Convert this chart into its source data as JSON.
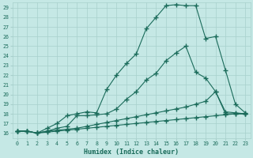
{
  "xlabel": "Humidex (Indice chaleur)",
  "background_color": "#c5e8e5",
  "grid_color": "#a8d0cc",
  "line_color": "#1a6b5a",
  "xlim": [
    -0.5,
    23.5
  ],
  "ylim": [
    15.5,
    29.5
  ],
  "yticks": [
    16,
    17,
    18,
    19,
    20,
    21,
    22,
    23,
    24,
    25,
    26,
    27,
    28,
    29
  ],
  "xticks": [
    0,
    1,
    2,
    3,
    4,
    5,
    6,
    7,
    8,
    9,
    10,
    11,
    12,
    13,
    14,
    15,
    16,
    17,
    18,
    19,
    20,
    21,
    22,
    23
  ],
  "line_max": {
    "x": [
      0,
      1,
      2,
      3,
      4,
      5,
      6,
      7,
      8,
      9,
      10,
      11,
      12,
      13,
      14,
      15,
      16,
      17,
      18,
      19,
      20,
      21,
      22,
      23
    ],
    "y": [
      16.2,
      16.2,
      16.0,
      16.5,
      17.0,
      17.8,
      18.0,
      18.2,
      18.1,
      20.5,
      22.0,
      23.2,
      24.2,
      26.8,
      28.0,
      29.2,
      29.3,
      29.2,
      29.2,
      25.8,
      26.0,
      22.5,
      19.0,
      18.1
    ]
  },
  "line_p75": {
    "x": [
      0,
      1,
      2,
      3,
      4,
      5,
      6,
      7,
      8,
      9,
      10,
      11,
      12,
      13,
      14,
      15,
      16,
      17,
      18,
      19,
      20,
      21,
      22,
      23
    ],
    "y": [
      16.2,
      16.2,
      16.0,
      16.2,
      16.5,
      16.7,
      17.8,
      17.8,
      17.9,
      18.0,
      18.5,
      19.5,
      20.3,
      21.5,
      22.2,
      23.5,
      24.3,
      25.0,
      22.3,
      21.7,
      20.3,
      18.0,
      18.0,
      18.0
    ]
  },
  "line_p25": {
    "x": [
      0,
      1,
      2,
      3,
      4,
      5,
      6,
      7,
      8,
      9,
      10,
      11,
      12,
      13,
      14,
      15,
      16,
      17,
      18,
      19,
      20,
      21,
      22,
      23
    ],
    "y": [
      16.2,
      16.2,
      16.0,
      16.2,
      16.3,
      16.4,
      16.5,
      16.7,
      16.9,
      17.1,
      17.3,
      17.5,
      17.7,
      17.9,
      18.1,
      18.3,
      18.5,
      18.7,
      19.0,
      19.3,
      20.3,
      18.2,
      18.1,
      18.0
    ]
  },
  "line_min": {
    "x": [
      0,
      1,
      2,
      3,
      4,
      5,
      6,
      7,
      8,
      9,
      10,
      11,
      12,
      13,
      14,
      15,
      16,
      17,
      18,
      19,
      20,
      21,
      22,
      23
    ],
    "y": [
      16.2,
      16.2,
      16.0,
      16.1,
      16.2,
      16.3,
      16.4,
      16.5,
      16.6,
      16.7,
      16.8,
      16.9,
      17.0,
      17.1,
      17.2,
      17.3,
      17.4,
      17.5,
      17.6,
      17.7,
      17.8,
      17.9,
      18.0,
      18.0
    ]
  }
}
